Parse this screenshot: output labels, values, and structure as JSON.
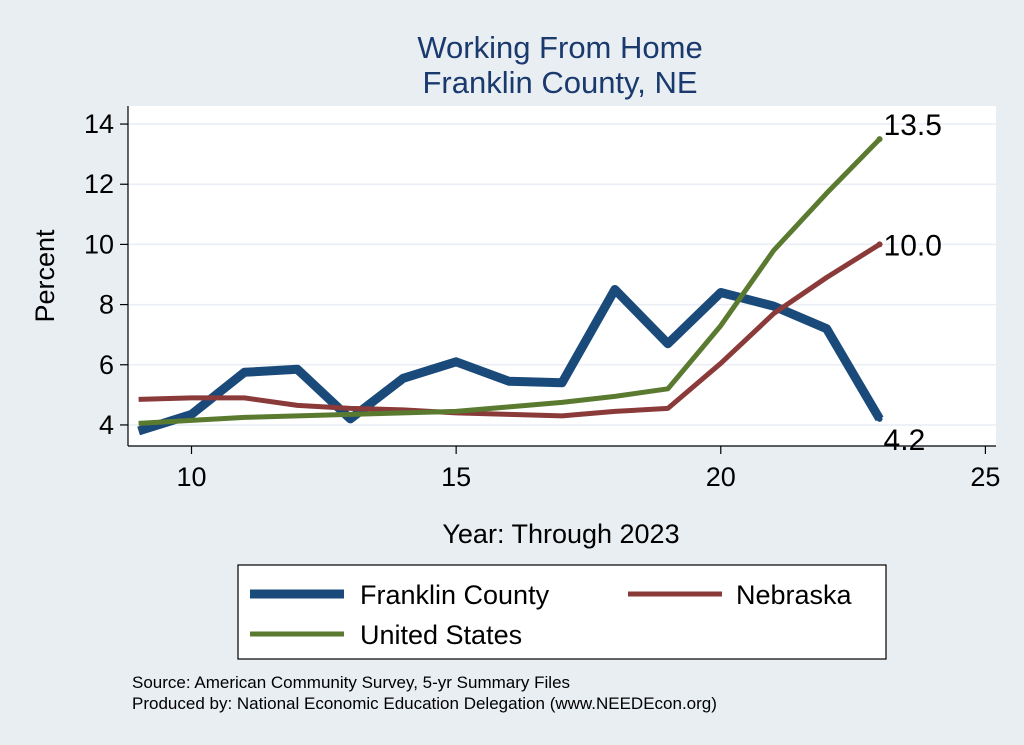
{
  "chart_data": {
    "type": "line",
    "title": [
      "Working From Home",
      "Franklin County, NE"
    ],
    "xlabel": "Year: Through 2023",
    "ylabel": "Percent",
    "xlim": [
      8.8,
      25.2
    ],
    "ylim": [
      3.3,
      14.6
    ],
    "xticks": [
      10,
      15,
      20,
      25
    ],
    "yticks": [
      4,
      6,
      8,
      10,
      12,
      14
    ],
    "grid": true,
    "legend_position": "bottom",
    "series": [
      {
        "name": "Franklin County",
        "color": "#1a4a7a",
        "x": [
          9,
          10,
          11,
          12,
          13,
          14,
          15,
          16,
          17,
          18,
          19,
          20,
          21,
          22,
          23
        ],
        "y": [
          3.8,
          4.35,
          5.75,
          5.85,
          4.2,
          5.55,
          6.1,
          5.45,
          5.4,
          8.5,
          6.7,
          8.4,
          7.95,
          7.2,
          4.2
        ],
        "end_label": "4.2"
      },
      {
        "name": "Nebraska",
        "color": "#8b3a3a",
        "x": [
          9,
          10,
          11,
          12,
          13,
          14,
          15,
          16,
          17,
          18,
          19,
          20,
          21,
          22,
          23
        ],
        "y": [
          4.85,
          4.9,
          4.9,
          4.65,
          4.55,
          4.5,
          4.4,
          4.35,
          4.3,
          4.45,
          4.55,
          6.05,
          7.7,
          8.9,
          10.0
        ],
        "end_label": "10.0"
      },
      {
        "name": "United States",
        "color": "#5a7a30",
        "x": [
          9,
          10,
          11,
          12,
          13,
          14,
          15,
          16,
          17,
          18,
          19,
          20,
          21,
          22,
          23
        ],
        "y": [
          4.05,
          4.15,
          4.25,
          4.3,
          4.35,
          4.4,
          4.45,
          4.6,
          4.75,
          4.95,
          5.2,
          7.3,
          9.8,
          11.7,
          13.5
        ],
        "end_label": "13.5"
      }
    ]
  },
  "legend": {
    "items": [
      {
        "label": "Franklin County",
        "color": "#1a4a7a"
      },
      {
        "label": "Nebraska",
        "color": "#8b3a3a"
      },
      {
        "label": "United States",
        "color": "#5a7a30"
      }
    ]
  },
  "footer": {
    "source": "Source: American Community Survey, 5-yr Summary Files",
    "produced": "Produced by: National Economic Education Delegation (www.NEEDEcon.org)"
  }
}
